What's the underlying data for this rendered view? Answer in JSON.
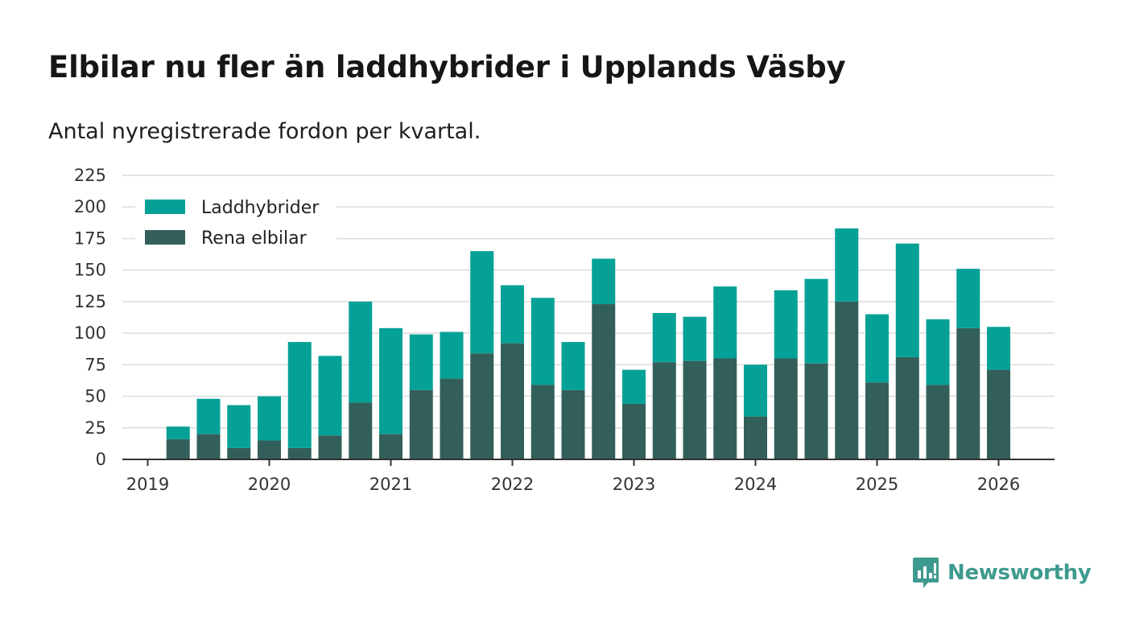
{
  "header": {
    "title": "Elbilar nu fler än laddhybrider i Upplands Väsby",
    "subtitle": "Antal nyregistrerade fordon per kvartal."
  },
  "brand": {
    "name": "Newsworthy",
    "icon": "newsworthy-logo-icon",
    "color": "#3e9a8e"
  },
  "chart_data": {
    "type": "bar",
    "stacked": true,
    "title": "Elbilar nu fler än laddhybrider i Upplands Väsby",
    "subtitle": "Antal nyregistrerade fordon per kvartal.",
    "xlabel": "",
    "ylabel": "",
    "ylim": [
      0,
      225
    ],
    "y_ticks": [
      0,
      25,
      50,
      75,
      100,
      125,
      150,
      175,
      200,
      225
    ],
    "grid": true,
    "legend_position": "top-left",
    "x_tick_labels": [
      "2019",
      "2020",
      "2021",
      "2022",
      "2023",
      "2024",
      "2025",
      "2026"
    ],
    "categories": [
      "2019 Q2",
      "2019 Q3",
      "2019 Q4",
      "2020 Q1",
      "2020 Q2",
      "2020 Q3",
      "2020 Q4",
      "2021 Q1",
      "2021 Q2",
      "2021 Q3",
      "2021 Q4",
      "2022 Q1",
      "2022 Q2",
      "2022 Q3",
      "2022 Q4",
      "2023 Q1",
      "2023 Q2",
      "2023 Q3",
      "2023 Q4",
      "2024 Q1",
      "2024 Q2",
      "2024 Q3",
      "2024 Q4",
      "2025 Q1",
      "2025 Q2",
      "2025 Q3",
      "2025 Q4",
      "2026 Q1"
    ],
    "series": [
      {
        "name": "Rena elbilar",
        "color": "#335f5a",
        "values": [
          16,
          20,
          9,
          15,
          9,
          19,
          45,
          20,
          55,
          64,
          84,
          92,
          59,
          55,
          123,
          44,
          77,
          78,
          80,
          34,
          80,
          76,
          125,
          61,
          81,
          59,
          104,
          71
        ]
      },
      {
        "name": "Laddhybrider",
        "color": "#05a197",
        "values": [
          10,
          28,
          34,
          35,
          84,
          63,
          80,
          84,
          44,
          37,
          81,
          46,
          69,
          38,
          36,
          27,
          39,
          35,
          57,
          41,
          54,
          67,
          58,
          54,
          90,
          52,
          47,
          34
        ]
      }
    ],
    "legend": [
      {
        "label": "Laddhybrider",
        "color": "#05a197"
      },
      {
        "label": "Rena elbilar",
        "color": "#335f5a"
      }
    ]
  }
}
